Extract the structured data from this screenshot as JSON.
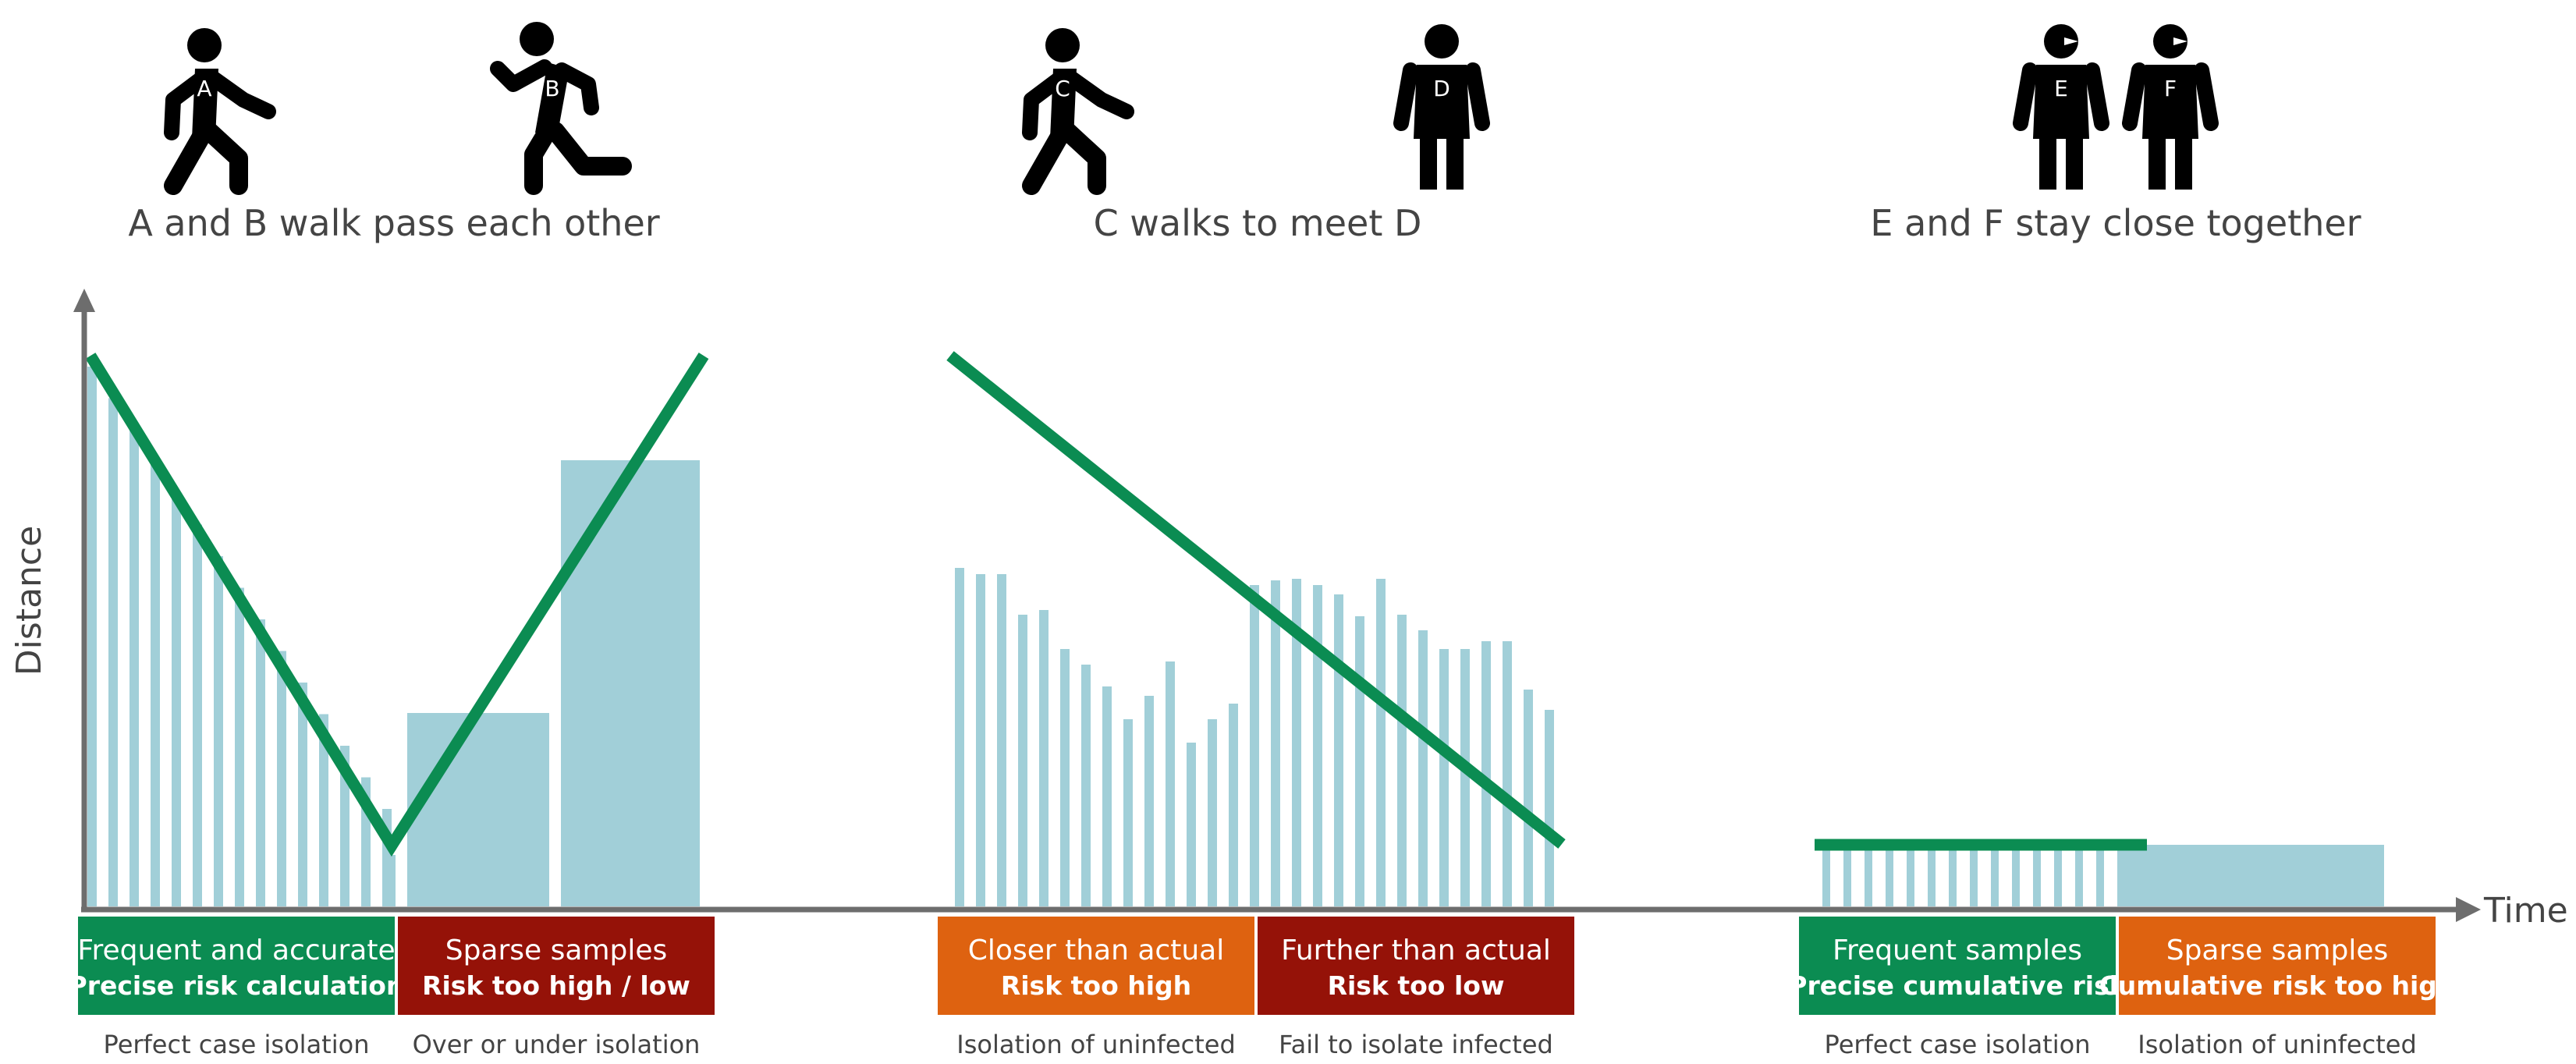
{
  "colors": {
    "line": "#0b8c52",
    "bar": "#a1cfd8",
    "axis": "#6d6d6d",
    "green_box": "#0b8c52",
    "red_box": "#951208",
    "orange_box": "#de6210",
    "text": "#444444",
    "figure": "#000000"
  },
  "axes": {
    "y_label": "Distance",
    "x_label": "Time"
  },
  "scenarios": [
    {
      "id": "ab",
      "title": "A and B walk pass each other",
      "figures": [
        {
          "letter": "A",
          "pose": "walking-person-icon"
        },
        {
          "letter": "B",
          "pose": "running-person-icon"
        }
      ],
      "boxes": [
        {
          "title": "Frequent and accurate",
          "subtitle": "Precise risk calculation",
          "color": "green",
          "caption": "Perfect case isolation"
        },
        {
          "title": "Sparse samples",
          "subtitle": "Risk too high / low",
          "color": "red",
          "caption": "Over or under isolation"
        }
      ]
    },
    {
      "id": "cd",
      "title": "C walks to meet D",
      "figures": [
        {
          "letter": "C",
          "pose": "walking-person-icon"
        },
        {
          "letter": "D",
          "pose": "standing-person-icon"
        }
      ],
      "boxes": [
        {
          "title": "Closer than actual",
          "subtitle": "Risk too high",
          "color": "orange",
          "caption": "Isolation of uninfected"
        },
        {
          "title": "Further than actual",
          "subtitle": "Risk too low",
          "color": "red",
          "caption": "Fail to isolate infected"
        }
      ]
    },
    {
      "id": "ef",
      "title": "E and F stay close together",
      "figures": [
        {
          "letter": "E",
          "pose": "talking-person-icon"
        },
        {
          "letter": "F",
          "pose": "talking-person-icon"
        }
      ],
      "boxes": [
        {
          "title": "Frequent samples",
          "subtitle": "Precise cumulative risk",
          "color": "green",
          "caption": "Perfect case isolation"
        },
        {
          "title": "Sparse samples",
          "subtitle": "Cumulative risk too high",
          "color": "orange",
          "caption": "Isolation of uninfected"
        }
      ]
    }
  ]
}
